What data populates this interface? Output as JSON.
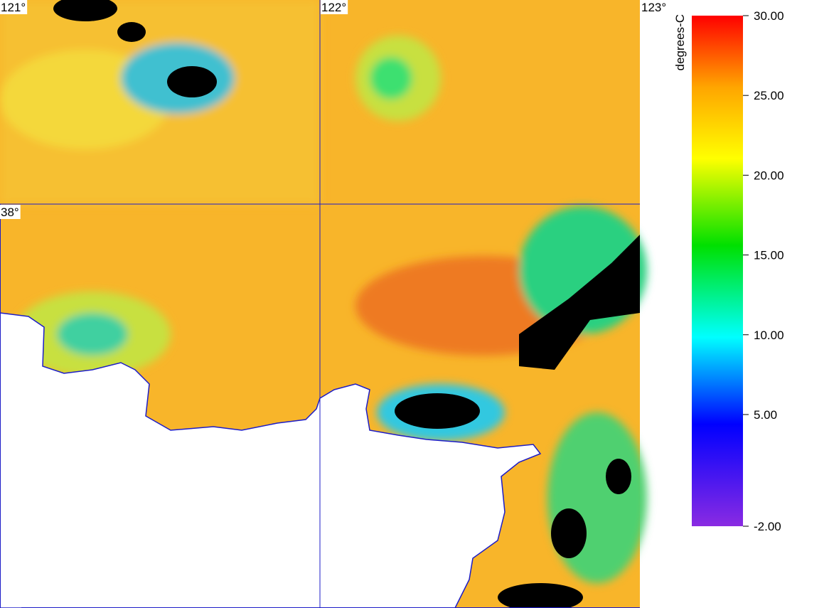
{
  "map": {
    "grid_labels": {
      "lon": [
        "121°",
        "122°",
        "123°"
      ],
      "lat": [
        "38°"
      ]
    },
    "colorbar": {
      "label": "degrees-C",
      "range": [
        -2,
        30
      ],
      "ticks": [
        {
          "value": 30,
          "label": "30.00"
        },
        {
          "value": 25,
          "label": "25.00"
        },
        {
          "value": 20,
          "label": "20.00"
        },
        {
          "value": 15,
          "label": "15.00"
        },
        {
          "value": 10,
          "label": "10.00"
        },
        {
          "value": 5,
          "label": "5.00"
        },
        {
          "value": -2,
          "label": "-2.00"
        }
      ]
    }
  }
}
